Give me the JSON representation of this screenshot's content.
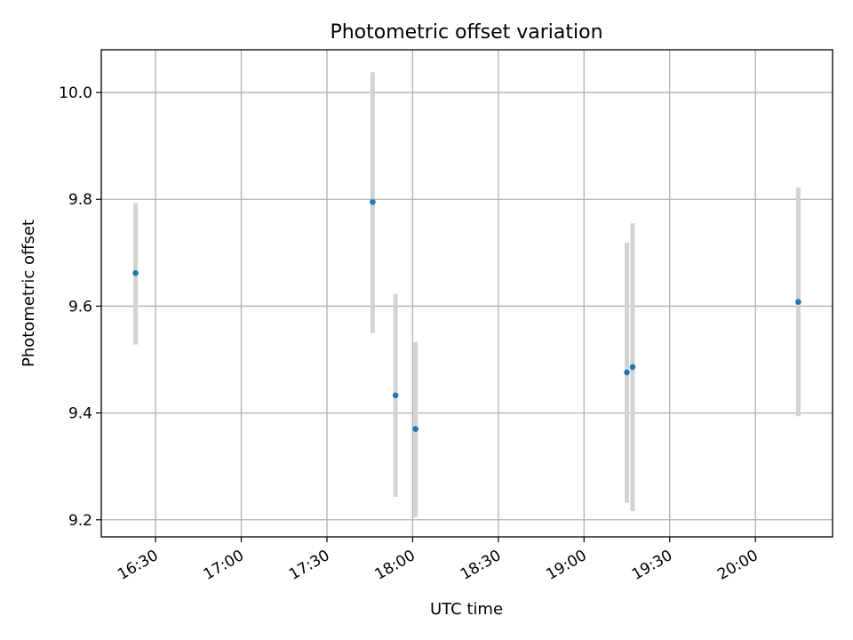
{
  "chart_data": {
    "type": "scatter",
    "title": "Photometric offset variation",
    "xlabel": "UTC time",
    "ylabel": "Photometric offset",
    "x_type": "time",
    "xlim": [
      "16:11",
      "20:27"
    ],
    "ylim": [
      9.168,
      10.08
    ],
    "x_ticks": [
      "16:30",
      "17:00",
      "17:30",
      "18:00",
      "18:30",
      "19:00",
      "19:30",
      "20:00"
    ],
    "y_ticks": [
      9.2,
      9.4,
      9.6,
      9.8,
      10.0
    ],
    "y_tick_labels": [
      "9.2",
      "9.4",
      "9.6",
      "9.8",
      "10.0"
    ],
    "grid": true,
    "colors": {
      "point": "#1f77b4",
      "error_bar": "#d3d3d3"
    },
    "series": [
      {
        "points": [
          {
            "x": "16:23",
            "y": 9.662,
            "err_low": 9.528,
            "err_high": 9.793
          },
          {
            "x": "17:46",
            "y": 9.795,
            "err_low": 9.55,
            "err_high": 10.038
          },
          {
            "x": "17:54",
            "y": 9.433,
            "err_low": 9.243,
            "err_high": 9.623
          },
          {
            "x": "18:01",
            "y": 9.37,
            "err_low": 9.205,
            "err_high": 9.533
          },
          {
            "x": "19:15",
            "y": 9.476,
            "err_low": 9.232,
            "err_high": 9.719
          },
          {
            "x": "19:17",
            "y": 9.486,
            "err_low": 9.216,
            "err_high": 9.755
          },
          {
            "x": "20:15",
            "y": 9.608,
            "err_low": 9.394,
            "err_high": 9.822
          }
        ]
      }
    ]
  }
}
